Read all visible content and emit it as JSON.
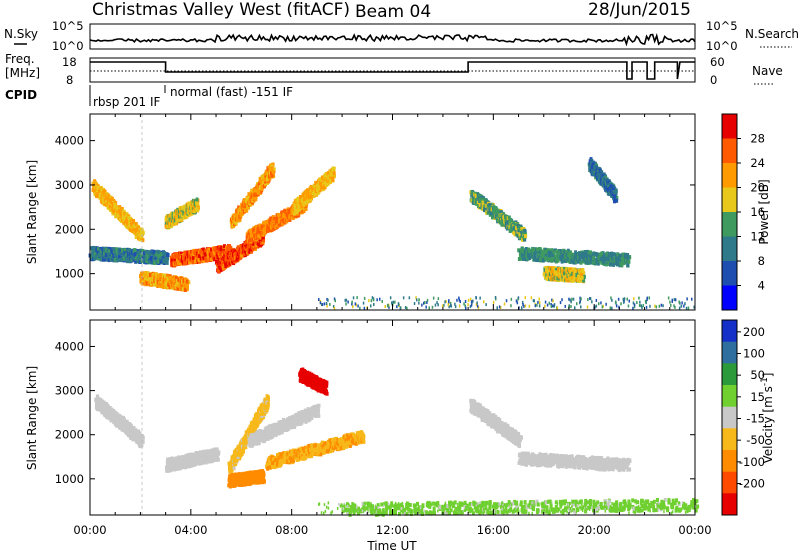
{
  "header": {
    "title": "Christmas Valley West (fitACF)",
    "beam": "Beam 04",
    "date": "28/Jun/2015"
  },
  "top_panels": {
    "nsky_label": "N.Sky",
    "nsky_ticks": [
      "10^5",
      "10^0"
    ],
    "nsearch_label": "N.Search",
    "nsearch_ticks": [
      "10^5",
      "10^0"
    ],
    "freq_label_1": "Freq.",
    "freq_label_2": "[MHz]",
    "freq_ticks": [
      "18",
      "8"
    ],
    "nave_label": "Nave",
    "nave_ticks": [
      "60",
      "0"
    ],
    "cpid_label": "CPID",
    "cpid_text_1": "rbsp 201 IF",
    "cpid_text_2": "normal (fast) -151 IF"
  },
  "x_axis": {
    "label": "Time UT",
    "ticks": [
      "00:00",
      "04:00",
      "08:00",
      "12:00",
      "16:00",
      "20:00",
      "00:00"
    ]
  },
  "colors": {
    "power_scale": [
      "#0000ff",
      "#1e4fb0",
      "#2f7a8a",
      "#3f9a60",
      "#e8c81a",
      "#ff9a00",
      "#ff5a00",
      "#e60000"
    ],
    "velocity_scale": [
      "#1530c8",
      "#2f6fa0",
      "#2a9a3a",
      "#6fd030",
      "#c8c8c8",
      "#f7b81a",
      "#ff8c00",
      "#ff4a00",
      "#e60000"
    ]
  },
  "chart_data": [
    {
      "type": "heatmap",
      "title": "Power",
      "ylabel": "Slant Range [km]",
      "xlabel": "",
      "x_range_hours": [
        0,
        24
      ],
      "ylim": [
        180,
        4600
      ],
      "y_ticks": [
        1000,
        2000,
        3000,
        4000
      ],
      "colorbar": {
        "label": "Power [dB]",
        "range": [
          0,
          32
        ],
        "ticks": [
          "4",
          "8",
          "12",
          "16",
          "20",
          "24",
          "28"
        ]
      },
      "features": [
        {
          "t_start": 0.1,
          "t_end": 2.0,
          "r_start": 3000,
          "r_end": 1900,
          "value": 20
        },
        {
          "t_start": 3.0,
          "t_end": 4.2,
          "r_start": 2200,
          "r_end": 2600,
          "value": 18
        },
        {
          "t_start": 3.2,
          "t_end": 5.5,
          "r_start": 1350,
          "r_end": 1550,
          "value": 26
        },
        {
          "t_start": 5.0,
          "t_end": 6.8,
          "r_start": 1200,
          "r_end": 1850,
          "value": 27
        },
        {
          "t_start": 5.6,
          "t_end": 7.2,
          "r_start": 2200,
          "r_end": 3400,
          "value": 22
        },
        {
          "t_start": 6.2,
          "t_end": 8.5,
          "r_start": 1850,
          "r_end": 2600,
          "value": 24
        },
        {
          "t_start": 8.0,
          "t_end": 9.6,
          "r_start": 2500,
          "r_end": 3300,
          "value": 20
        },
        {
          "t_start": 2.0,
          "t_end": 3.8,
          "r_start": 950,
          "r_end": 800,
          "value": 22
        },
        {
          "t_start": 0.0,
          "t_end": 3.0,
          "r_start": 1500,
          "r_end": 1400,
          "value": 10
        },
        {
          "t_start": 15.1,
          "t_end": 17.2,
          "r_start": 2800,
          "r_end": 1900,
          "value": 14
        },
        {
          "t_start": 17.0,
          "t_end": 21.3,
          "r_start": 1500,
          "r_end": 1350,
          "value": 12
        },
        {
          "t_start": 18.0,
          "t_end": 19.5,
          "r_start": 1050,
          "r_end": 1000,
          "value": 18
        },
        {
          "t_start": 19.8,
          "t_end": 20.8,
          "r_start": 3500,
          "r_end": 2800,
          "value": 9
        }
      ]
    },
    {
      "type": "heatmap",
      "title": "Velocity",
      "ylabel": "Slant Range [km]",
      "xlabel": "Time UT",
      "x_range_hours": [
        0,
        24
      ],
      "ylim": [
        180,
        4600
      ],
      "y_ticks": [
        1000,
        2000,
        3000,
        4000
      ],
      "colorbar": {
        "label": "Velocity [m s^-1]",
        "range": [
          -250,
          250
        ],
        "ticks": [
          "200",
          "100",
          "50",
          "15",
          "-15",
          "-50",
          "-100",
          "-200"
        ]
      },
      "features": [
        {
          "t_start": 0.2,
          "t_end": 2.0,
          "r_start": 2800,
          "r_end": 1900,
          "value": 0
        },
        {
          "t_start": 3.0,
          "t_end": 5.0,
          "r_start": 1350,
          "r_end": 1600,
          "value": 0
        },
        {
          "t_start": 5.5,
          "t_end": 7.0,
          "r_start": 1300,
          "r_end": 2800,
          "value": -40
        },
        {
          "t_start": 6.3,
          "t_end": 9.0,
          "r_start": 1900,
          "r_end": 2600,
          "value": 0
        },
        {
          "t_start": 8.3,
          "t_end": 9.3,
          "r_start": 3400,
          "r_end": 3100,
          "value": -220
        },
        {
          "t_start": 7.0,
          "t_end": 10.8,
          "r_start": 1400,
          "r_end": 2000,
          "value": -80
        },
        {
          "t_start": 5.5,
          "t_end": 6.8,
          "r_start": 1000,
          "r_end": 1100,
          "value": -120
        },
        {
          "t_start": 15.1,
          "t_end": 17.0,
          "r_start": 2700,
          "r_end": 1900,
          "value": 0
        },
        {
          "t_start": 17.0,
          "t_end": 21.3,
          "r_start": 1500,
          "r_end": 1350,
          "value": 0
        },
        {
          "t_start": 10.0,
          "t_end": 24.0,
          "r_start": 350,
          "r_end": 450,
          "value": 40
        }
      ]
    }
  ]
}
